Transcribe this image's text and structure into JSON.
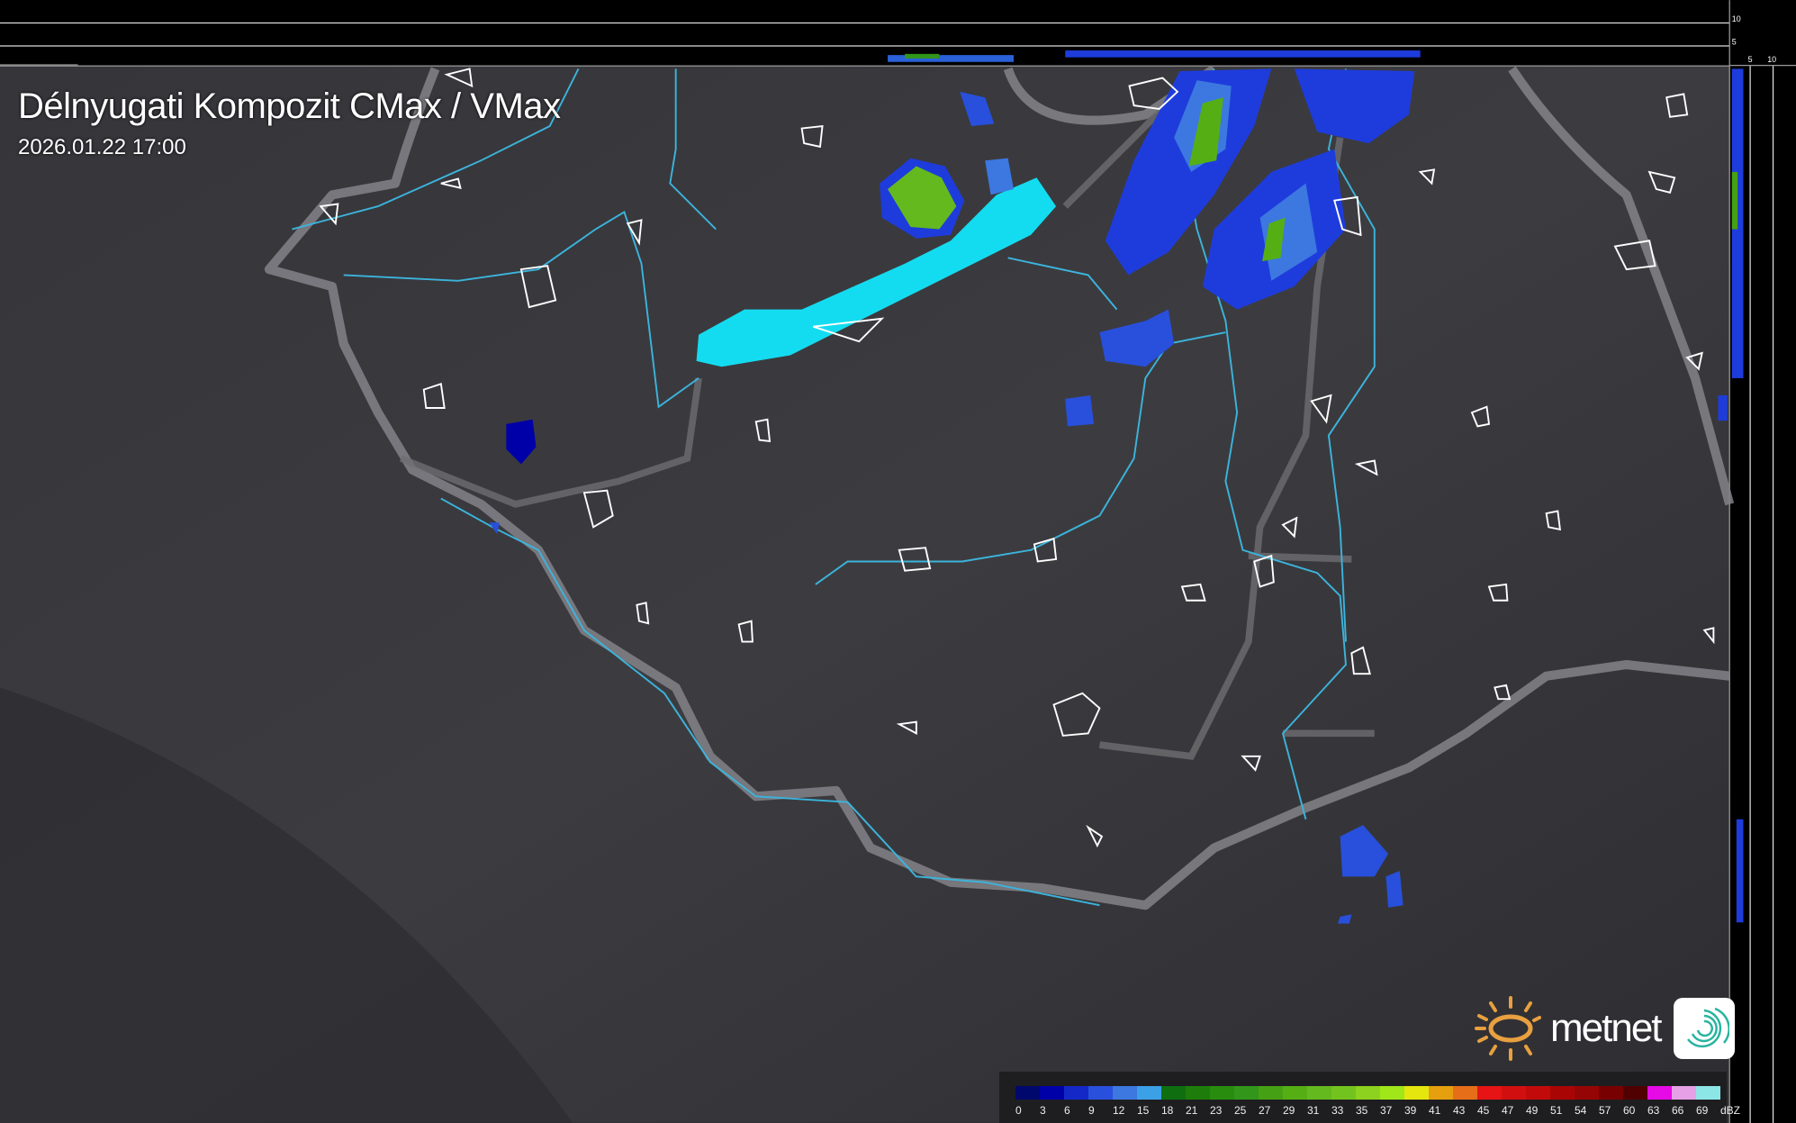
{
  "header": {
    "title": "Délnyugati Kompozit CMax / VMax",
    "timestamp": "2026.01.22 17:00"
  },
  "side_scale": {
    "top_labels": [
      "10",
      "5"
    ],
    "right_labels": [
      "5",
      "10"
    ]
  },
  "legend": {
    "unit": "dBZ",
    "labels": [
      "0",
      "3",
      "6",
      "9",
      "12",
      "15",
      "18",
      "21",
      "23",
      "25",
      "27",
      "29",
      "31",
      "33",
      "35",
      "37",
      "39",
      "41",
      "43",
      "45",
      "47",
      "49",
      "51",
      "54",
      "57",
      "60",
      "63",
      "66",
      "69"
    ],
    "colors": [
      "#00086e",
      "#0000a8",
      "#1428c8",
      "#2850dc",
      "#3c78e0",
      "#3ca0e6",
      "#0f6e0f",
      "#1e7d0a",
      "#288c0f",
      "#32961a",
      "#46a014",
      "#55af14",
      "#64b91e",
      "#73c31e",
      "#8cd21e",
      "#a0e619",
      "#e6e60f",
      "#e6a00f",
      "#e66e19",
      "#e61414",
      "#d20f0f",
      "#c30a0a",
      "#aa0505",
      "#960505",
      "#780000",
      "#500000",
      "#e60ae6",
      "#e6a0e6",
      "#8ce6e6"
    ]
  },
  "logo": {
    "brand": "metnet",
    "icon": "metnet-swirl-app-icon",
    "sun_icon": "sun-icon"
  },
  "colors": {
    "background": "#3a3a3e",
    "river": "#3cb4dc",
    "lake": "#14dcf0",
    "border": "#8a8a8e"
  }
}
